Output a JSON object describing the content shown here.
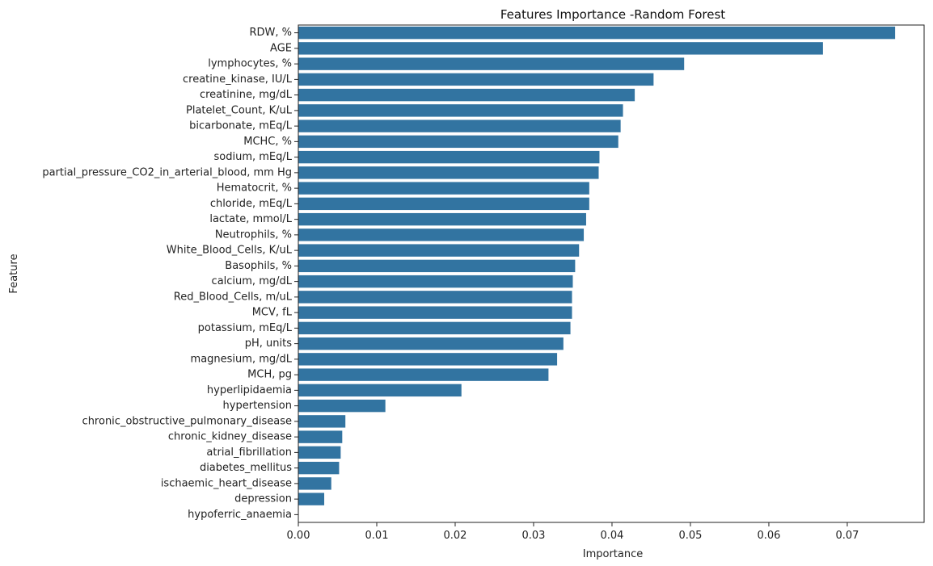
{
  "chart_data": {
    "type": "bar",
    "orientation": "horizontal",
    "title": "Features Importance -Random Forest",
    "xlabel": "Importance",
    "ylabel": "Feature",
    "xlim": [
      0,
      0.0798
    ],
    "xticks": [
      0.0,
      0.01,
      0.02,
      0.03,
      0.04,
      0.05,
      0.06,
      0.07
    ],
    "xtick_labels": [
      "0.00",
      "0.01",
      "0.02",
      "0.03",
      "0.04",
      "0.05",
      "0.06",
      "0.07"
    ],
    "grid": false,
    "bar_color": "#3274a1",
    "categories": [
      "RDW, %",
      "AGE",
      "lymphocytes, %",
      "creatine_kinase, IU/L",
      "creatinine, mg/dL",
      "Platelet_Count, K/uL",
      "bicarbonate, mEq/L",
      "MCHC, %",
      "sodium, mEq/L",
      "partial_pressure_CO2_in_arterial_blood, mm Hg",
      "Hematocrit, %",
      "chloride, mEq/L",
      "lactate, mmol/L",
      "Neutrophils, %",
      "White_Blood_Cells, K/uL",
      "Basophils, %",
      "calcium, mg/dL",
      "Red_Blood_Cells, m/uL",
      "MCV, fL",
      "potassium, mEq/L",
      "pH, units",
      "magnesium, mg/dL",
      "MCH, pg",
      "hyperlipidaemia",
      "hypertension",
      "chronic_obstructive_pulmonary_disease",
      "chronic_kidney_disease",
      "atrial_fibrillation",
      "diabetes_mellitus",
      "ischaemic_heart_disease",
      "depression",
      "hypoferric_anaemia"
    ],
    "values": [
      0.0761,
      0.0669,
      0.0492,
      0.0453,
      0.0429,
      0.0414,
      0.0411,
      0.0408,
      0.0384,
      0.0383,
      0.0371,
      0.0371,
      0.0367,
      0.0364,
      0.0358,
      0.0353,
      0.035,
      0.0349,
      0.0349,
      0.0347,
      0.0338,
      0.033,
      0.0319,
      0.0208,
      0.0111,
      0.006,
      0.0056,
      0.0054,
      0.0052,
      0.0042,
      0.0033,
      0.0
    ]
  }
}
